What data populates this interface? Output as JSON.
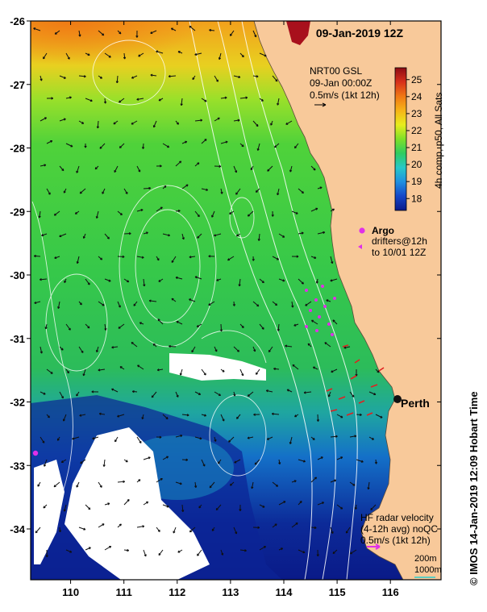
{
  "header": {
    "date_label": "09-Jan-2019 12Z"
  },
  "map": {
    "x_axis": {
      "min": 109.25,
      "max": 116.95,
      "ticks": [
        110,
        111,
        112,
        113,
        114,
        115,
        116
      ]
    },
    "y_axis": {
      "min": -34.8,
      "max": -26.0,
      "ticks": [
        -26,
        -27,
        -28,
        -29,
        -30,
        -31,
        -32,
        -33,
        -34
      ]
    },
    "land_color": "#f8c99a",
    "grid": true
  },
  "gsl_label": {
    "line1": "NRT00 GSL",
    "line2": "09-Jan 00:00Z",
    "line3": "0.5m/s (1kt 12h)"
  },
  "colorbar": {
    "min": 17.3,
    "max": 25.7,
    "ticks": [
      18,
      19,
      20,
      21,
      22,
      23,
      24,
      25
    ],
    "label": "4h comp, p50, All Sats",
    "colors": [
      "#0b1a8a",
      "#1446c8",
      "#1f8fe0",
      "#27c8c8",
      "#2fcc60",
      "#7ee028",
      "#e8ec1e",
      "#f6b418",
      "#f07814",
      "#d8301a",
      "#8c0b14"
    ]
  },
  "argo_legend": {
    "title": "Argo",
    "line1": "drifters@12h",
    "line2": "to 10/01 12Z",
    "argo_color": "#e030e8",
    "drifter_color": "#e030e8"
  },
  "city": {
    "name": "Perth",
    "lon": 115.86,
    "lat": -31.95
  },
  "hf_radar": {
    "line1": "HF radar velocity",
    "line2": "(4-12h avg) noQC",
    "line3": "0.5m/s (1kt 12h)",
    "arrow_color": "#e030e8"
  },
  "depth_legend": {
    "line1": "200m",
    "line2": "1000m"
  },
  "credit": "© IMOS 14-Jan-2019 12:09 Hobart Time"
}
